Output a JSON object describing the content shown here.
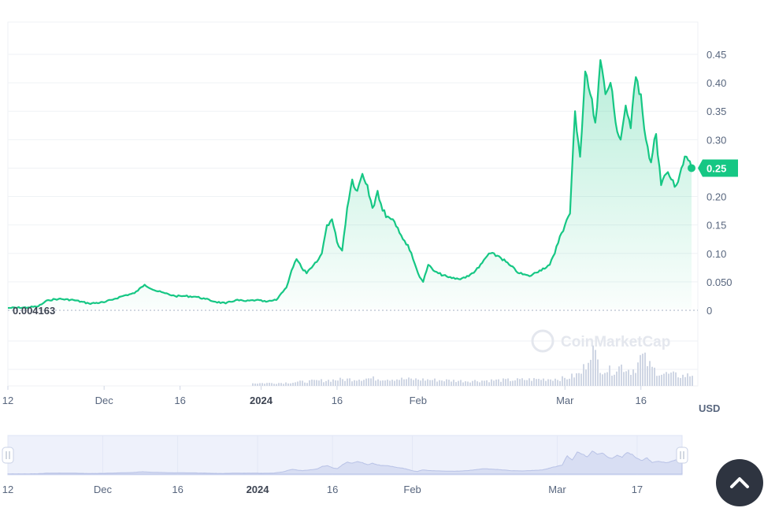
{
  "chart_data": {
    "type": "area",
    "currency": "USD",
    "base_value_label": "0.004163",
    "current_price_label": "0.25",
    "watermark": "CoinMarketCap",
    "y_ticks": [
      {
        "value": 0,
        "label": "0"
      },
      {
        "value": 0.05,
        "label": "0.050"
      },
      {
        "value": 0.1,
        "label": "0.10"
      },
      {
        "value": 0.15,
        "label": "0.15"
      },
      {
        "value": 0.2,
        "label": "0.20"
      },
      {
        "value": 0.25,
        "label": "0.25"
      },
      {
        "value": 0.3,
        "label": "0.30"
      },
      {
        "value": 0.35,
        "label": "0.35"
      },
      {
        "value": 0.4,
        "label": "0.40"
      },
      {
        "value": 0.45,
        "label": "0.45"
      }
    ],
    "ylim": [
      0,
      0.5
    ],
    "x_range": [
      "2023-11-12",
      "2024-03-26"
    ],
    "x_ticks": [
      {
        "date": "2023-11-12",
        "label": "12",
        "bold": false
      },
      {
        "date": "2023-12-01",
        "label": "Dec",
        "bold": false
      },
      {
        "date": "2023-12-16",
        "label": "16",
        "bold": false
      },
      {
        "date": "2024-01-01",
        "label": "2024",
        "bold": true
      },
      {
        "date": "2024-01-16",
        "label": "16",
        "bold": false
      },
      {
        "date": "2024-02-01",
        "label": "Feb",
        "bold": false
      },
      {
        "date": "2024-03-01",
        "label": "Mar",
        "bold": false
      },
      {
        "date": "2024-03-16",
        "label": "16",
        "bold": false
      }
    ],
    "navigator_ticks": [
      {
        "date": "2023-11-12",
        "label": "12",
        "bold": false
      },
      {
        "date": "2023-12-01",
        "label": "Dec",
        "bold": false
      },
      {
        "date": "2023-12-16",
        "label": "16",
        "bold": false
      },
      {
        "date": "2024-01-01",
        "label": "2024",
        "bold": true
      },
      {
        "date": "2024-01-16",
        "label": "16",
        "bold": false
      },
      {
        "date": "2024-02-01",
        "label": "Feb",
        "bold": false
      },
      {
        "date": "2024-03-01",
        "label": "Mar",
        "bold": false
      },
      {
        "date": "2024-03-17",
        "label": "17",
        "bold": false
      }
    ],
    "series": [
      {
        "x": [
          "2023-11-12",
          "2023-11-16",
          "2023-11-18",
          "2023-11-20",
          "2023-11-22",
          "2023-11-25",
          "2023-11-28",
          "2023-12-01",
          "2023-12-03",
          "2023-12-05",
          "2023-12-07",
          "2023-12-09",
          "2023-12-11",
          "2023-12-13",
          "2023-12-15",
          "2023-12-17",
          "2023-12-19",
          "2023-12-21",
          "2023-12-23",
          "2023-12-25",
          "2023-12-27",
          "2023-12-29",
          "2023-12-31",
          "2024-01-02",
          "2024-01-04",
          "2024-01-05",
          "2024-01-06",
          "2024-01-07",
          "2024-01-08",
          "2024-01-09",
          "2024-01-10",
          "2024-01-11",
          "2024-01-12",
          "2024-01-13",
          "2024-01-14",
          "2024-01-15",
          "2024-01-16",
          "2024-01-17",
          "2024-01-18",
          "2024-01-19",
          "2024-01-20",
          "2024-01-21",
          "2024-01-22",
          "2024-01-23",
          "2024-01-24",
          "2024-01-25",
          "2024-01-26",
          "2024-01-27",
          "2024-01-28",
          "2024-01-29",
          "2024-01-30",
          "2024-01-31",
          "2024-02-01",
          "2024-02-02",
          "2024-02-03",
          "2024-02-04",
          "2024-02-05",
          "2024-02-07",
          "2024-02-09",
          "2024-02-11",
          "2024-02-13",
          "2024-02-15",
          "2024-02-17",
          "2024-02-19",
          "2024-02-21",
          "2024-02-23",
          "2024-02-25",
          "2024-02-27",
          "2024-02-28",
          "2024-02-29",
          "2024-03-01",
          "2024-03-02",
          "2024-03-03",
          "2024-03-04",
          "2024-03-05",
          "2024-03-06",
          "2024-03-07",
          "2024-03-08",
          "2024-03-09",
          "2024-03-10",
          "2024-03-11",
          "2024-03-12",
          "2024-03-13",
          "2024-03-14",
          "2024-03-15",
          "2024-03-16",
          "2024-03-17",
          "2024-03-18",
          "2024-03-19",
          "2024-03-20",
          "2024-03-21",
          "2024-03-22",
          "2024-03-23",
          "2024-03-24",
          "2024-03-25",
          "2024-03-26"
        ],
        "y": [
          0.004,
          0.005,
          0.007,
          0.018,
          0.02,
          0.018,
          0.012,
          0.014,
          0.02,
          0.026,
          0.03,
          0.045,
          0.035,
          0.03,
          0.025,
          0.025,
          0.024,
          0.02,
          0.015,
          0.012,
          0.018,
          0.016,
          0.018,
          0.015,
          0.018,
          0.03,
          0.04,
          0.07,
          0.09,
          0.075,
          0.065,
          0.075,
          0.085,
          0.1,
          0.15,
          0.16,
          0.12,
          0.105,
          0.18,
          0.23,
          0.21,
          0.24,
          0.22,
          0.18,
          0.21,
          0.175,
          0.165,
          0.16,
          0.145,
          0.125,
          0.115,
          0.09,
          0.065,
          0.05,
          0.08,
          0.07,
          0.065,
          0.058,
          0.055,
          0.06,
          0.075,
          0.1,
          0.095,
          0.08,
          0.065,
          0.06,
          0.07,
          0.08,
          0.1,
          0.13,
          0.15,
          0.17,
          0.35,
          0.27,
          0.42,
          0.38,
          0.33,
          0.44,
          0.38,
          0.4,
          0.33,
          0.3,
          0.36,
          0.32,
          0.41,
          0.38,
          0.3,
          0.26,
          0.31,
          0.22,
          0.24,
          0.23,
          0.22,
          0.25,
          0.27,
          0.25
        ]
      }
    ],
    "volume": {
      "x": [
        "2023-11-20",
        "2023-12-10",
        "2024-01-05",
        "2024-01-15",
        "2024-01-22",
        "2024-02-01",
        "2024-02-10",
        "2024-02-20",
        "2024-03-01",
        "2024-03-04",
        "2024-03-05",
        "2024-03-06",
        "2024-03-07",
        "2024-03-08",
        "2024-03-10",
        "2024-03-12",
        "2024-03-14",
        "2024-03-15",
        "2024-03-16",
        "2024-03-18",
        "2024-03-20",
        "2024-03-24",
        "2024-03-26"
      ],
      "y": [
        0.02,
        0.03,
        0.06,
        0.12,
        0.15,
        0.13,
        0.1,
        0.12,
        0.15,
        0.25,
        0.45,
        0.8,
        0.55,
        0.35,
        0.3,
        0.4,
        0.3,
        0.4,
        0.6,
        0.35,
        0.25,
        0.2,
        0.22
      ]
    }
  },
  "ui": {
    "scroll_top_icon": "chevron-up-icon"
  }
}
